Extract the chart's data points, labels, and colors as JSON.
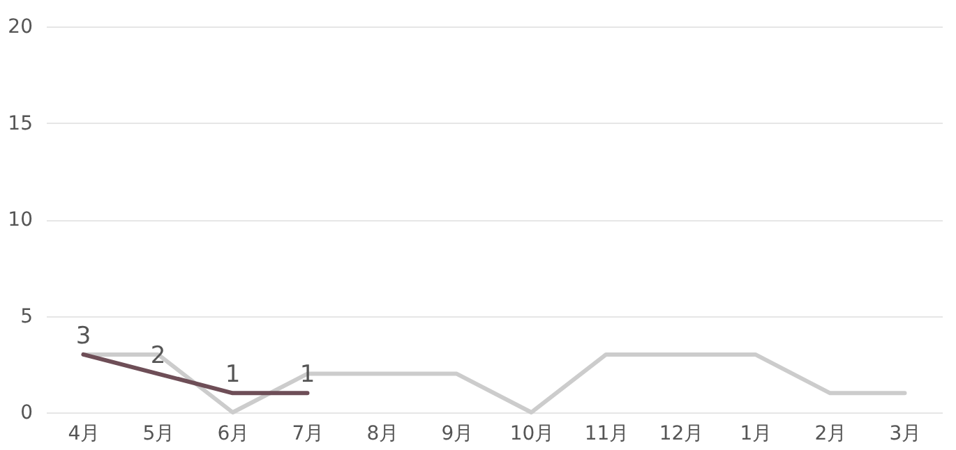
{
  "chart_data": {
    "type": "line",
    "categories": [
      "4月",
      "5月",
      "6月",
      "7月",
      "8月",
      "9月",
      "10月",
      "11月",
      "12月",
      "1月",
      "2月",
      "3月"
    ],
    "series": [
      {
        "color": "#cccccc",
        "values": [
          3,
          3,
          0,
          2,
          2,
          2,
          0,
          3,
          3,
          3,
          1,
          1
        ]
      },
      {
        "color": "#6e4e57",
        "values": [
          3,
          2,
          1,
          1,
          null,
          null,
          null,
          null,
          null,
          null,
          null,
          null
        ],
        "value_labels": [
          "3",
          "2",
          "1",
          "1",
          null,
          null,
          null,
          null,
          null,
          null,
          null,
          null
        ]
      }
    ],
    "ylim": [
      0,
      20
    ],
    "yticks": [
      0,
      5,
      10,
      15,
      20
    ],
    "grid": "y",
    "marker": "none",
    "line_style": "solid"
  }
}
